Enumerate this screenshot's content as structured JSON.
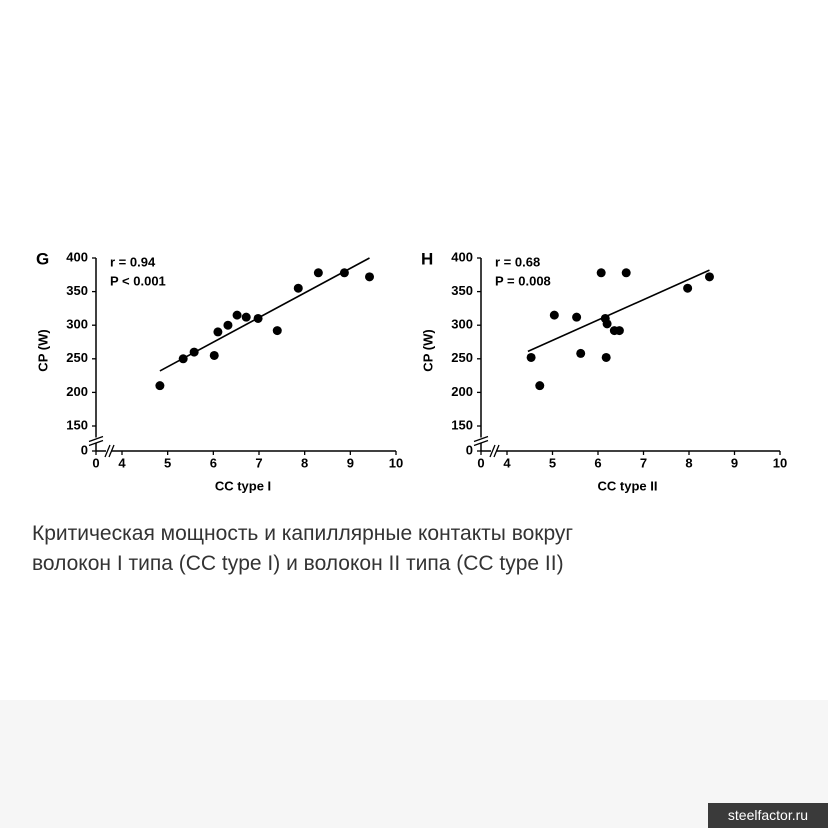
{
  "chart_data": [
    {
      "type": "scatter",
      "panel": "G",
      "annotations": [
        "r = 0.94",
        "P < 0.001"
      ],
      "x_label": "CC type I",
      "y_label": "CP (W)",
      "color": "#000000",
      "x": [
        4.83,
        5.34,
        5.58,
        6.02,
        6.1,
        6.32,
        6.52,
        6.72,
        6.98,
        7.4,
        7.86,
        8.3,
        8.87,
        9.42
      ],
      "values": [
        210,
        250,
        260,
        255,
        290,
        300,
        315,
        312,
        310,
        292,
        355,
        378,
        378,
        372
      ],
      "trend_line": {
        "x": [
          4.83,
          9.42
        ],
        "y": [
          232,
          400
        ]
      },
      "xlim": [
        0,
        10
      ],
      "xticks": [
        0,
        4,
        5,
        6,
        7,
        8,
        9,
        10
      ],
      "ylim": [
        0,
        400
      ],
      "yticks": [
        0,
        150,
        200,
        250,
        300,
        350,
        400
      ],
      "axis_break": true
    },
    {
      "type": "scatter",
      "panel": "H",
      "annotations": [
        "r = 0.68",
        "P = 0.008"
      ],
      "x_label": "CC type II",
      "y_label": "CP (W)",
      "color": "#000000",
      "x": [
        4.53,
        4.72,
        5.04,
        5.53,
        5.62,
        6.07,
        6.16,
        6.2,
        6.18,
        6.36,
        6.47,
        6.62,
        7.97,
        8.45
      ],
      "values": [
        252,
        210,
        315,
        312,
        258,
        378,
        310,
        302,
        252,
        292,
        292,
        378,
        355,
        372
      ],
      "trend_line": {
        "x": [
          4.46,
          8.45
        ],
        "y": [
          261,
          382
        ]
      },
      "xlim": [
        0,
        10
      ],
      "xticks": [
        0,
        4,
        5,
        6,
        7,
        8,
        9,
        10
      ],
      "ylim": [
        0,
        400
      ],
      "yticks": [
        0,
        150,
        200,
        250,
        300,
        350,
        400
      ],
      "axis_break": true
    }
  ],
  "caption": [
    "Критическая мощность и капиллярные контакты вокруг",
    "волокон I типа (CC type I) и волокон II типа (CC type II)"
  ],
  "watermark": "steelfactor.ru"
}
